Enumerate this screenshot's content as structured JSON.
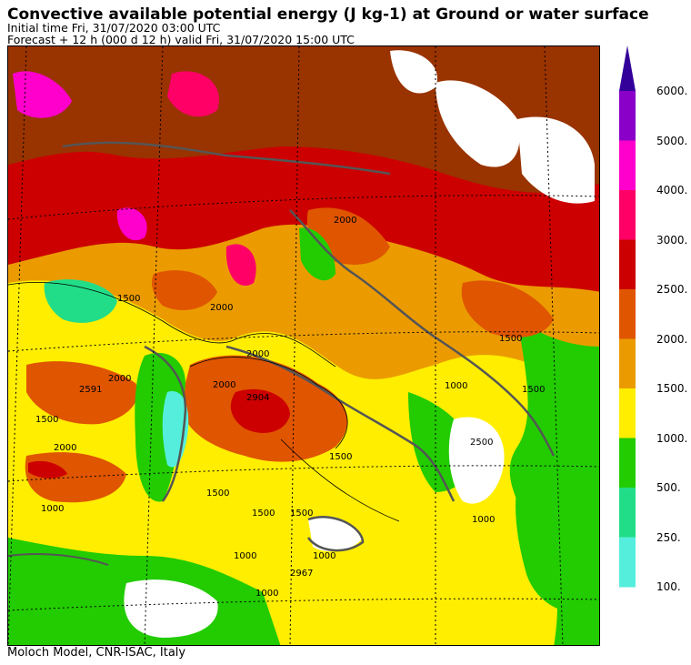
{
  "header": {
    "title": "Convective available potential energy (J kg-1) at Ground or water surface",
    "initial_time": "Initial time  Fri, 31/07/2020  03:00 UTC",
    "forecast": "Forecast  +  12 h  (000 d 12 h)  valid Fri, 31/07/2020 15:00 UTC"
  },
  "footer": {
    "credit": "Moloch Model, CNR-ISAC, Italy"
  },
  "colorbar": {
    "levels": [
      {
        "label": "6000.",
        "color": "#8a00c8"
      },
      {
        "label": "5000.",
        "color": "#ff00cc"
      },
      {
        "label": "4000.",
        "color": "#ff0066"
      },
      {
        "label": "3000.",
        "color": "#cc0000"
      },
      {
        "label": "2500.",
        "color": "#e05500"
      },
      {
        "label": "2000.",
        "color": "#eb9b00"
      },
      {
        "label": "1500.",
        "color": "#ffee00"
      },
      {
        "label": "1000.",
        "color": "#22cc00"
      },
      {
        "label": "500.",
        "color": "#22dd88"
      },
      {
        "label": "250.",
        "color": "#55eedd"
      },
      {
        "label": "100.",
        "color": ""
      }
    ],
    "top_color": "#33009a"
  },
  "map": {
    "contour_labels": [
      "2000",
      "1500",
      "2000",
      "1500",
      "1500",
      "2000",
      "2000",
      "2591",
      "1500",
      "2904",
      "2000",
      "1500",
      "2000",
      "1500",
      "1000",
      "1500",
      "1000",
      "2500",
      "1000",
      "1000",
      "1000",
      "1000",
      "1500",
      "2967"
    ]
  }
}
